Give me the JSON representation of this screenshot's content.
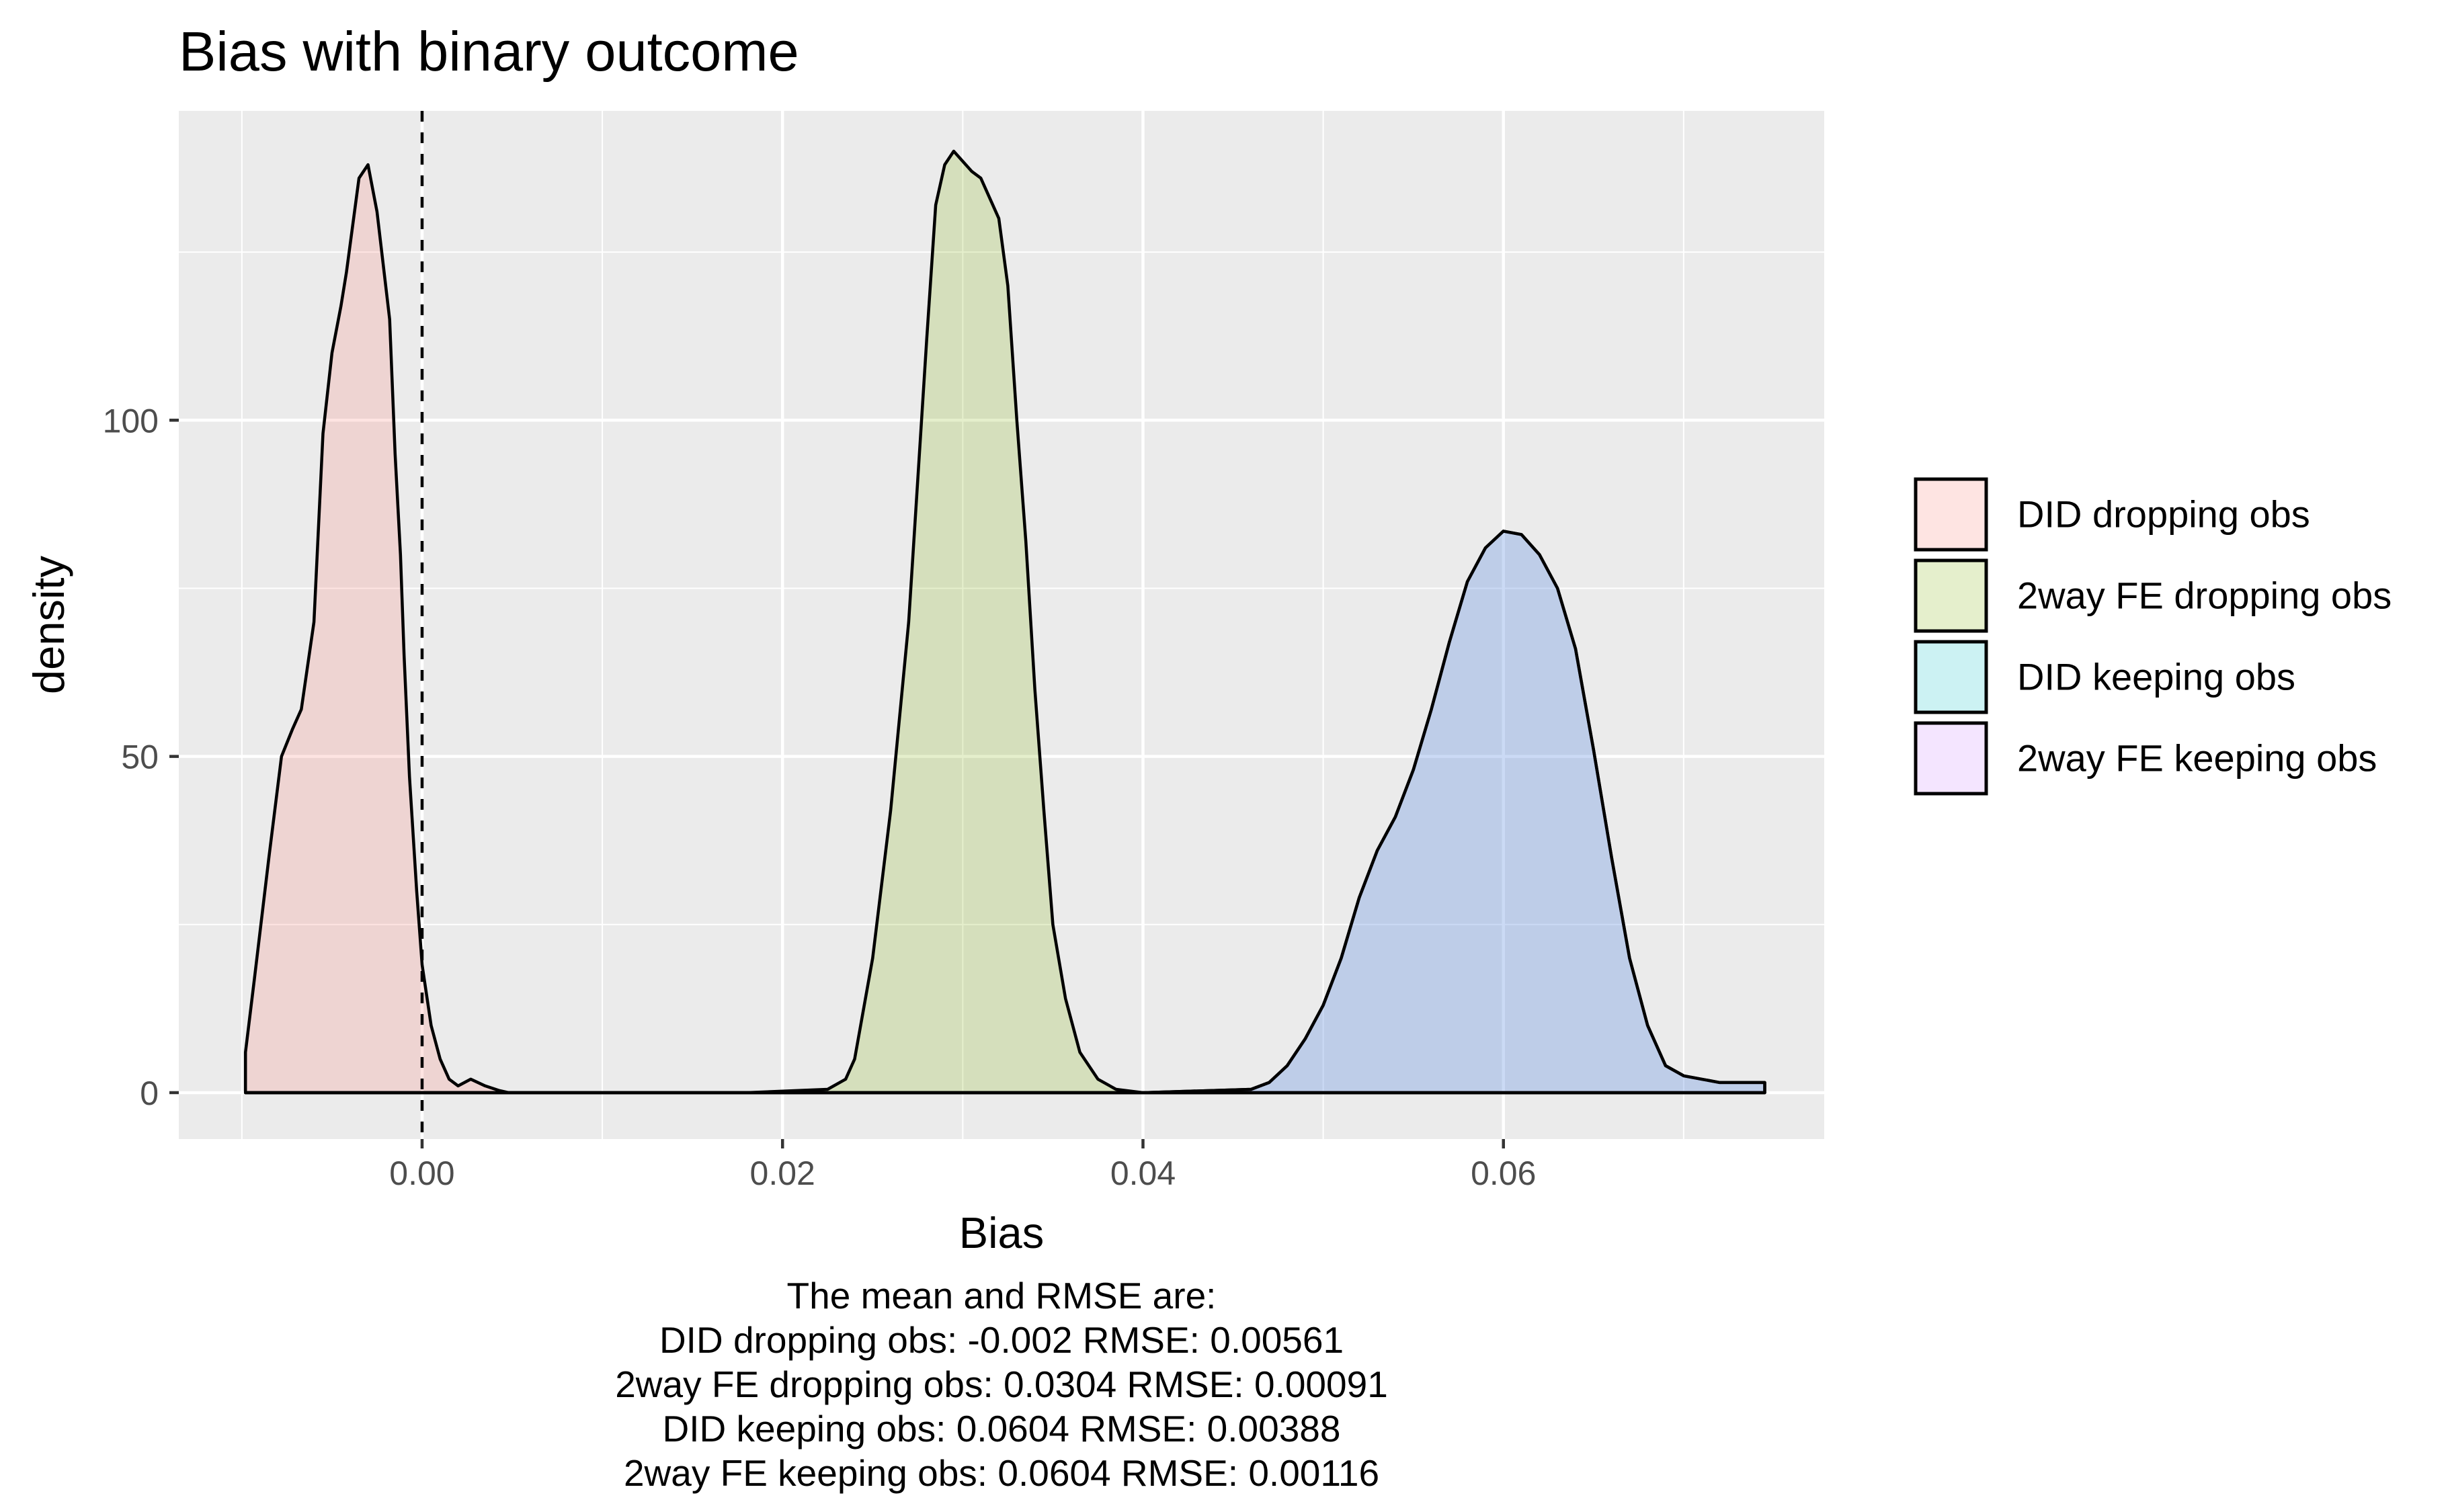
{
  "chart_data": {
    "type": "area",
    "title": "Bias with binary outcome",
    "xlabel": "Bias",
    "ylabel": "density",
    "xlim": [
      -0.0135,
      0.0778
    ],
    "ylim": [
      -6.9,
      146
    ],
    "x_ticks": [
      0.0,
      0.02,
      0.04,
      0.06
    ],
    "x_tick_labels": [
      "0.00",
      "0.02",
      "0.04",
      "0.06"
    ],
    "y_ticks": [
      0,
      50,
      100
    ],
    "y_tick_labels": [
      "0",
      "50",
      "100"
    ],
    "grid": true,
    "reference_line": {
      "x": 0.0,
      "style": "dashed"
    },
    "legend_position": "right",
    "series": [
      {
        "name": "DID dropping obs",
        "fill": "#F8766D",
        "x": [
          -0.0098,
          -0.0093,
          -0.0085,
          -0.0078,
          -0.0072,
          -0.0067,
          -0.006,
          -0.0055,
          -0.005,
          -0.0045,
          -0.0042,
          -0.0038,
          -0.0035,
          -0.003,
          -0.0025,
          -0.0018,
          -0.0015,
          -0.0012,
          -0.001,
          -0.0007,
          -0.0003,
          0.0,
          0.0005,
          0.001,
          0.0015,
          0.002,
          0.0027,
          0.0035,
          0.0043,
          0.0048,
          0.0055,
          0.006,
          0.0068,
          0.0075,
          0.0083,
          0.009,
          0.0095,
          0.0105,
          0.012,
          0.015,
          0.02,
          0.03,
          0.04,
          0.05,
          0.06,
          0.07,
          0.0745
        ],
        "y": [
          6,
          17,
          35,
          50,
          54,
          57,
          70,
          98,
          110,
          117,
          122,
          130,
          136,
          138,
          131,
          115,
          95,
          80,
          65,
          47,
          30,
          19,
          10,
          5,
          2,
          1,
          2,
          1,
          0.3,
          0,
          0,
          0,
          0,
          0,
          0,
          0,
          0,
          0,
          0,
          0,
          0,
          0,
          0,
          0,
          0,
          0,
          0
        ]
      },
      {
        "name": "2way FE dropping obs",
        "fill": "#7CAE00",
        "x": [
          -0.0098,
          0.0,
          0.01,
          0.018,
          0.0225,
          0.0235,
          0.024,
          0.025,
          0.026,
          0.027,
          0.028,
          0.0285,
          0.029,
          0.0295,
          0.0305,
          0.031,
          0.032,
          0.0325,
          0.033,
          0.0335,
          0.034,
          0.0345,
          0.035,
          0.0357,
          0.0365,
          0.0375,
          0.0385,
          0.04,
          0.05,
          0.06,
          0.07,
          0.0745
        ],
        "y": [
          0,
          0,
          0,
          0,
          0.5,
          2,
          5,
          20,
          42,
          70,
          112,
          132,
          138,
          140,
          137,
          136,
          130,
          120,
          100,
          82,
          60,
          42,
          25,
          14,
          6,
          2,
          0.5,
          0,
          0,
          0,
          0,
          0
        ]
      },
      {
        "name": "DID keeping obs",
        "fill": "#00BFC4",
        "x": [
          -0.0098,
          0.0,
          0.02,
          0.04,
          0.046,
          0.047,
          0.048,
          0.049,
          0.05,
          0.051,
          0.052,
          0.053,
          0.054,
          0.055,
          0.056,
          0.057,
          0.058,
          0.059,
          0.06,
          0.061,
          0.062,
          0.063,
          0.064,
          0.065,
          0.066,
          0.067,
          0.068,
          0.069,
          0.07,
          0.071,
          0.072,
          0.0745
        ],
        "y": [
          0,
          0,
          0,
          0,
          0.5,
          1.5,
          4,
          8,
          13,
          20,
          29,
          36,
          41,
          48,
          57,
          67,
          76,
          81,
          83.5,
          83,
          80,
          75,
          66,
          51,
          35,
          20,
          10,
          4,
          2.5,
          2,
          1.5,
          1.5
        ]
      },
      {
        "name": "2way FE keeping obs",
        "fill": "#C77CFF",
        "x": [
          -0.0098,
          0.0,
          0.02,
          0.04,
          0.046,
          0.047,
          0.048,
          0.049,
          0.05,
          0.051,
          0.052,
          0.053,
          0.054,
          0.055,
          0.056,
          0.057,
          0.058,
          0.059,
          0.06,
          0.061,
          0.062,
          0.063,
          0.064,
          0.065,
          0.066,
          0.067,
          0.068,
          0.069,
          0.07,
          0.071,
          0.072,
          0.0745
        ],
        "y": [
          0,
          0,
          0,
          0,
          0.5,
          1.5,
          4,
          8,
          13,
          20,
          29,
          36,
          41,
          48,
          57,
          67,
          76,
          81,
          83.5,
          83,
          80,
          75,
          66,
          51,
          35,
          20,
          10,
          4,
          2.5,
          2,
          1.5,
          1.5
        ]
      }
    ],
    "caption": [
      "The mean and RMSE are:",
      "DID dropping obs: -0.002 RMSE: 0.00561",
      "2way FE dropping obs: 0.0304 RMSE: 0.00091",
      "DID keeping obs: 0.0604 RMSE: 0.00388",
      "2way FE keeping obs: 0.0604 RMSE: 0.00116"
    ]
  }
}
